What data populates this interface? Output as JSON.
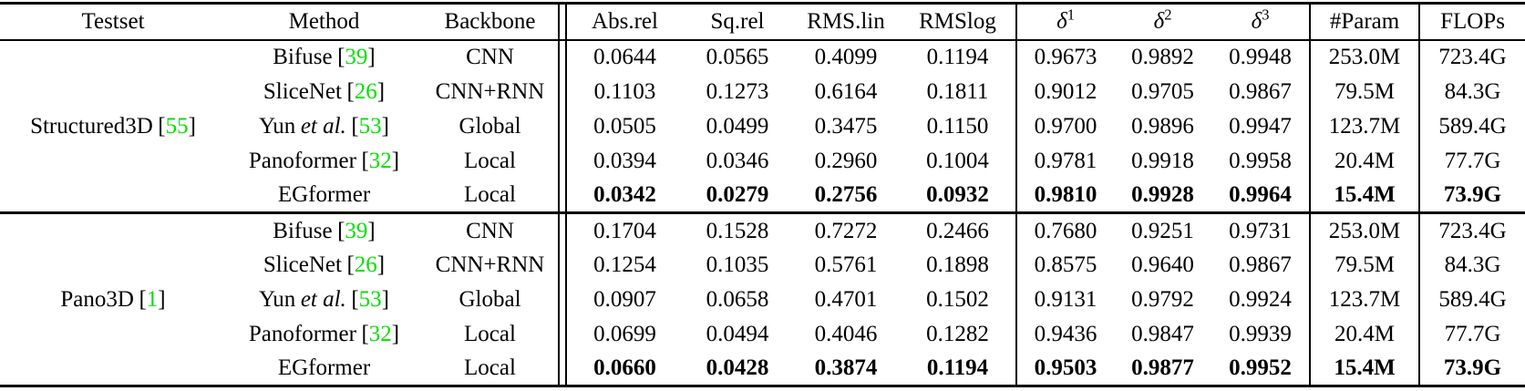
{
  "colors": {
    "citation": "#00e000",
    "text": "#000000",
    "background": "#ffffff"
  },
  "punctuation": {
    "cite_open": "[",
    "cite_close": "]"
  },
  "table": {
    "columns": {
      "testset": "Testset",
      "method": "Method",
      "backbone": "Backbone",
      "abs_rel": "Abs.rel",
      "sq_rel": "Sq.rel",
      "rms_lin": "RMS.lin",
      "rms_log": "RMSlog",
      "delta1_base": "δ",
      "delta1_sup": "1",
      "delta2_base": "δ",
      "delta2_sup": "2",
      "delta3_base": "δ",
      "delta3_sup": "3",
      "param": "#Param",
      "flops": "FLOPs"
    },
    "groups": [
      {
        "testset": "Structured3D",
        "testset_cite": "55",
        "rows": [
          {
            "method": "Bifuse",
            "method_italic": "",
            "cite": "39",
            "backbone": "CNN",
            "bold": false,
            "values": [
              "0.0644",
              "0.0565",
              "0.4099",
              "0.1194",
              "0.9673",
              "0.9892",
              "0.9948",
              "253.0M",
              "723.4G"
            ]
          },
          {
            "method": "SliceNet",
            "method_italic": "",
            "cite": "26",
            "backbone": "CNN+RNN",
            "bold": false,
            "values": [
              "0.1103",
              "0.1273",
              "0.6164",
              "0.1811",
              "0.9012",
              "0.9705",
              "0.9867",
              "79.5M",
              "84.3G"
            ]
          },
          {
            "method": "Yun",
            "method_italic": "et al.",
            "cite": "53",
            "backbone": "Global",
            "bold": false,
            "values": [
              "0.0505",
              "0.0499",
              "0.3475",
              "0.1150",
              "0.9700",
              "0.9896",
              "0.9947",
              "123.7M",
              "589.4G"
            ]
          },
          {
            "method": "Panoformer",
            "method_italic": "",
            "cite": "32",
            "backbone": "Local",
            "bold": false,
            "values": [
              "0.0394",
              "0.0346",
              "0.2960",
              "0.1004",
              "0.9781",
              "0.9918",
              "0.9958",
              "20.4M",
              "77.7G"
            ]
          },
          {
            "method": "EGformer",
            "method_italic": "",
            "cite": "",
            "backbone": "Local",
            "bold": true,
            "values": [
              "0.0342",
              "0.0279",
              "0.2756",
              "0.0932",
              "0.9810",
              "0.9928",
              "0.9964",
              "15.4M",
              "73.9G"
            ]
          }
        ]
      },
      {
        "testset": "Pano3D",
        "testset_cite": "1",
        "rows": [
          {
            "method": "Bifuse",
            "method_italic": "",
            "cite": "39",
            "backbone": "CNN",
            "bold": false,
            "values": [
              "0.1704",
              "0.1528",
              "0.7272",
              "0.2466",
              "0.7680",
              "0.9251",
              "0.9731",
              "253.0M",
              "723.4G"
            ]
          },
          {
            "method": "SliceNet",
            "method_italic": "",
            "cite": "26",
            "backbone": "CNN+RNN",
            "bold": false,
            "values": [
              "0.1254",
              "0.1035",
              "0.5761",
              "0.1898",
              "0.8575",
              "0.9640",
              "0.9867",
              "79.5M",
              "84.3G"
            ]
          },
          {
            "method": "Yun",
            "method_italic": "et al.",
            "cite": "53",
            "backbone": "Global",
            "bold": false,
            "values": [
              "0.0907",
              "0.0658",
              "0.4701",
              "0.1502",
              "0.9131",
              "0.9792",
              "0.9924",
              "123.7M",
              "589.4G"
            ]
          },
          {
            "method": "Panoformer",
            "method_italic": "",
            "cite": "32",
            "backbone": "Local",
            "bold": false,
            "values": [
              "0.0699",
              "0.0494",
              "0.4046",
              "0.1282",
              "0.9436",
              "0.9847",
              "0.9939",
              "20.4M",
              "77.7G"
            ]
          },
          {
            "method": "EGformer",
            "method_italic": "",
            "cite": "",
            "backbone": "Local",
            "bold": true,
            "values": [
              "0.0660",
              "0.0428",
              "0.3874",
              "0.1194",
              "0.9503",
              "0.9877",
              "0.9952",
              "15.4M",
              "73.9G"
            ]
          }
        ]
      }
    ]
  }
}
